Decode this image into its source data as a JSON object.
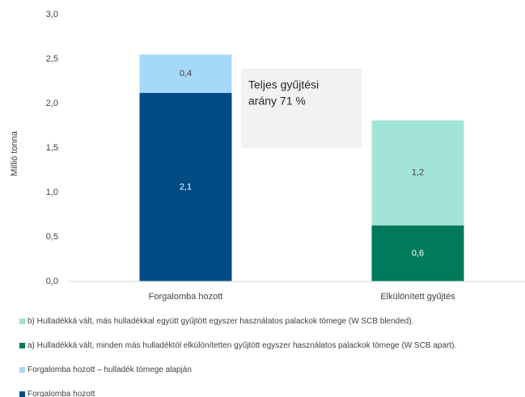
{
  "chart_data": {
    "type": "stacked_bar",
    "y_label": "Millió tonna",
    "categories": [
      "Forgalomba hozott",
      "Elkülönített gyűjtés"
    ],
    "series": [
      {
        "name": "Forgalomba hozott",
        "color": "#004b84",
        "values": [
          2.12,
          null
        ],
        "value_labels": [
          "2,1",
          null
        ]
      },
      {
        "name": "Forgalomba hozott – hulladék tömege alapján",
        "color": "#a6d8f8",
        "values": [
          0.43,
          null
        ],
        "value_labels": [
          "0,4",
          null
        ]
      },
      {
        "name": "a) Hulladékká vált, minden más hulladéktól elkülönítetten gyűjtött egyszer használatos palackok tömege (W SCB apart).",
        "color": "#007a5c",
        "values": [
          null,
          0.63
        ],
        "value_labels": [
          null,
          "0,6"
        ]
      },
      {
        "name": "b) Hulladékká vált, más hulladékkal együtt gyűjtött egyszer használatos palackok tömege (W SCB blended).",
        "color": "#a3e4d9",
        "values": [
          null,
          1.18
        ],
        "value_labels": [
          null,
          "1,2"
        ]
      }
    ],
    "ylim": [
      0,
      3
    ],
    "yticks": [
      {
        "value": 0,
        "label": "0,0"
      },
      {
        "value": 0.5,
        "label": "0,5"
      },
      {
        "value": 1,
        "label": "1,0"
      },
      {
        "value": 1.5,
        "label": "1,5"
      },
      {
        "value": 2,
        "label": "2,0"
      },
      {
        "value": 2.5,
        "label": "2,5"
      },
      {
        "value": 3,
        "label": "3,0"
      }
    ],
    "annotation": [
      "Teljes gyűjtési",
      "arány 71 %"
    ]
  }
}
